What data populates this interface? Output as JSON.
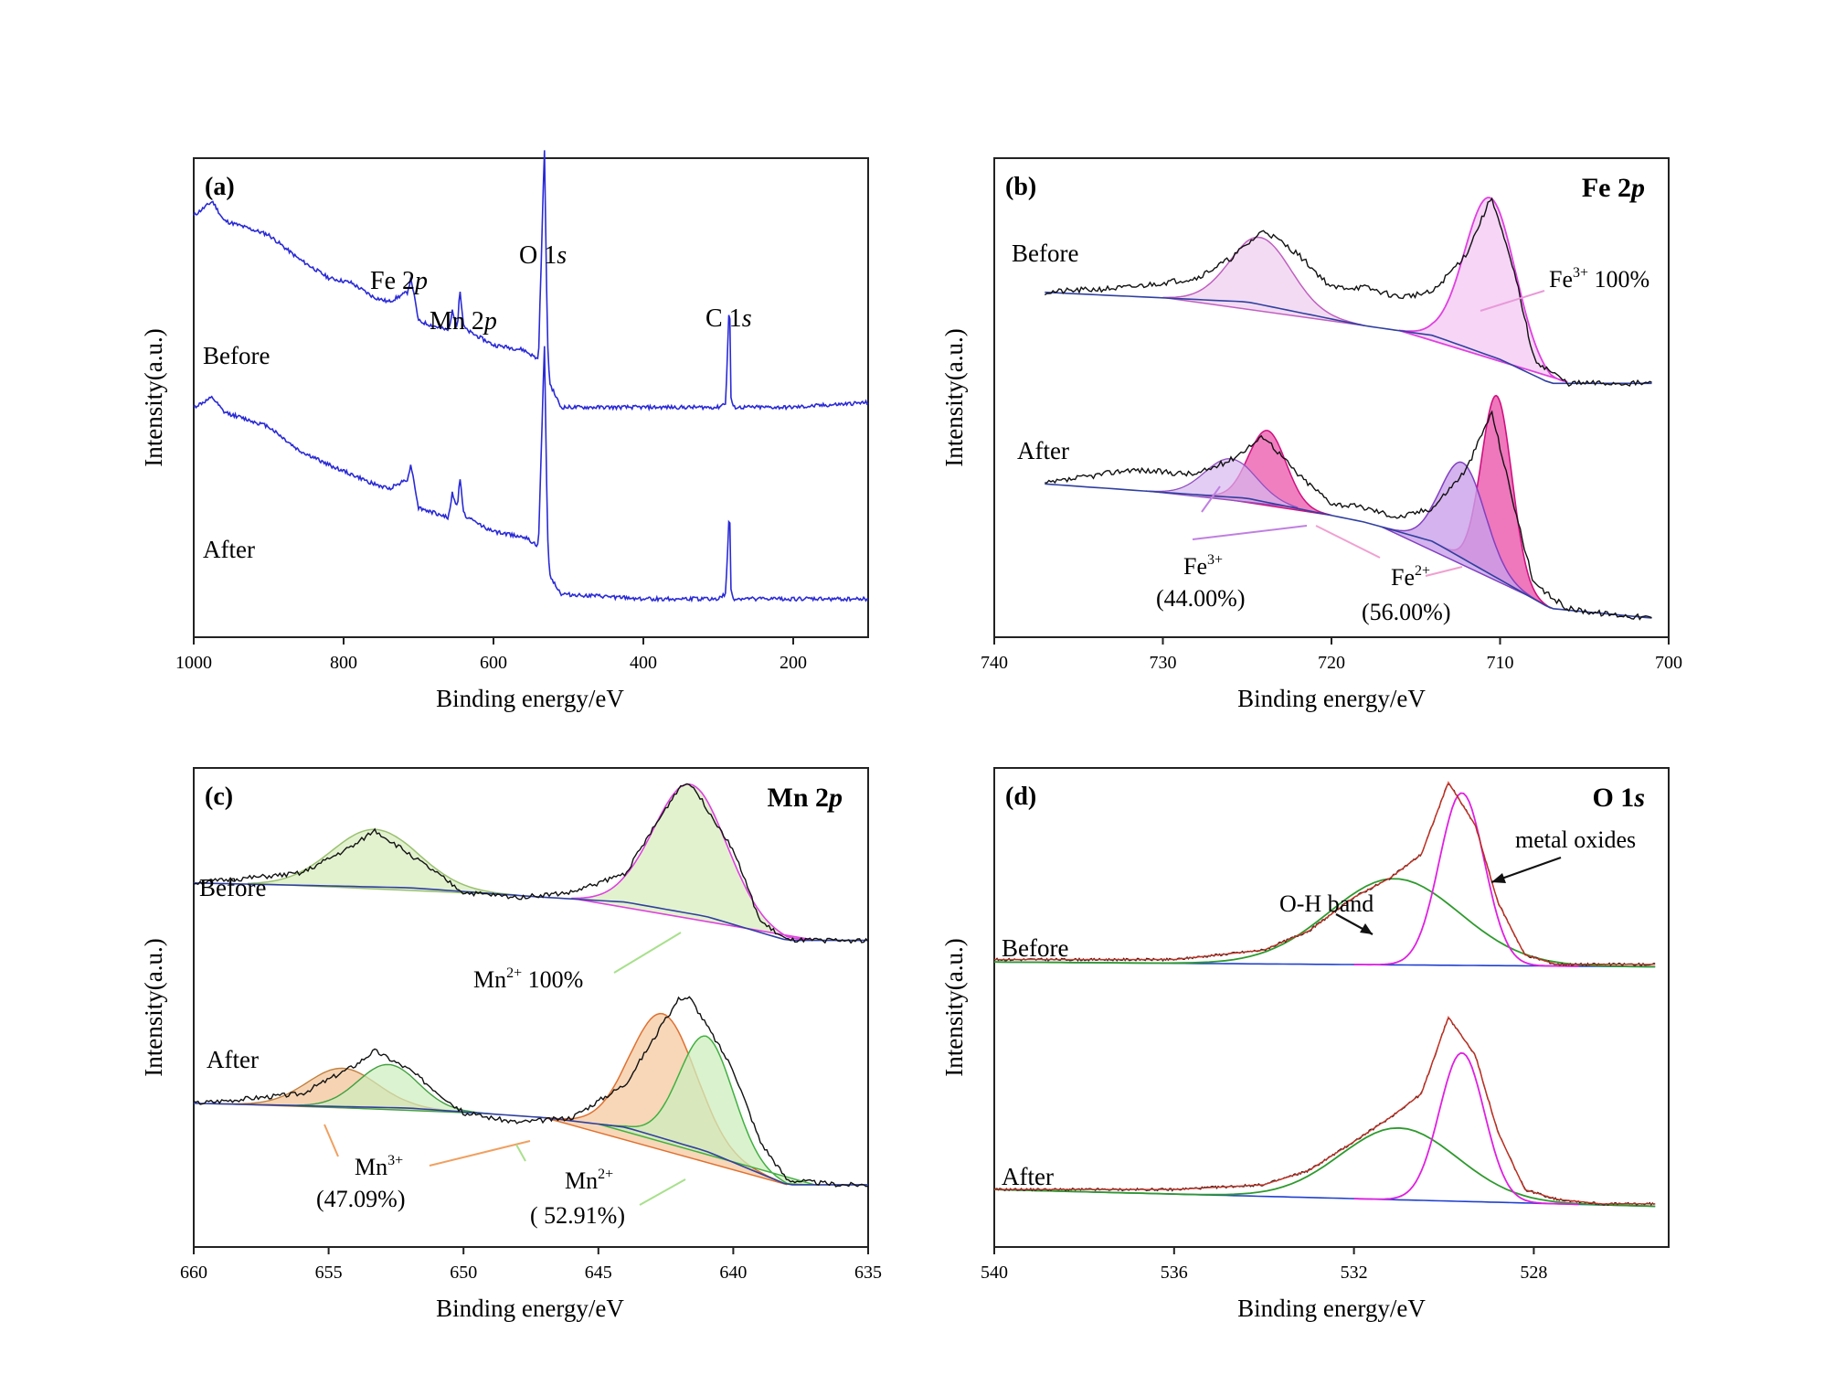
{
  "chart_data": [
    {
      "panel": "(a)",
      "type": "line",
      "element": "",
      "xlabel": "Binding energy/eV",
      "ylabel": "Intensity(a.u.)",
      "xlim": [
        1000,
        100
      ],
      "xticks": [
        1000,
        800,
        600,
        400,
        200
      ],
      "series": [
        {
          "name": "Before",
          "color": "#2a2ad6",
          "x": [
            1000,
            975,
            960,
            900,
            860,
            820,
            790,
            760,
            740,
            715,
            710,
            700,
            660,
            655,
            648,
            645,
            640,
            635,
            600,
            560,
            540,
            532,
            528,
            525,
            510,
            400,
            300,
            290,
            285,
            283,
            280,
            270,
            200,
            100
          ],
          "y": [
            0.88,
            0.91,
            0.87,
            0.84,
            0.79,
            0.75,
            0.74,
            0.71,
            0.7,
            0.72,
            0.75,
            0.66,
            0.64,
            0.68,
            0.65,
            0.73,
            0.65,
            0.64,
            0.61,
            0.6,
            0.58,
            1.02,
            0.62,
            0.53,
            0.48,
            0.48,
            0.48,
            0.49,
            0.72,
            0.5,
            0.48,
            0.48,
            0.48,
            0.49
          ]
        },
        {
          "name": "After",
          "color": "#2a2ad6",
          "x": [
            1000,
            975,
            960,
            900,
            860,
            820,
            790,
            760,
            740,
            715,
            710,
            700,
            660,
            655,
            648,
            645,
            640,
            635,
            600,
            560,
            540,
            532,
            528,
            525,
            510,
            400,
            300,
            290,
            285,
            283,
            280,
            270,
            200,
            100
          ],
          "y": [
            0.48,
            0.5,
            0.47,
            0.44,
            0.39,
            0.36,
            0.34,
            0.32,
            0.31,
            0.33,
            0.36,
            0.27,
            0.25,
            0.3,
            0.27,
            0.34,
            0.26,
            0.25,
            0.22,
            0.21,
            0.19,
            0.61,
            0.22,
            0.13,
            0.09,
            0.08,
            0.08,
            0.09,
            0.28,
            0.1,
            0.08,
            0.08,
            0.08,
            0.08
          ]
        }
      ],
      "annotations": [
        "Fe 2p",
        "Mn 2p",
        "O 1s",
        "C 1s"
      ],
      "row_labels": [
        "Before",
        "After"
      ]
    },
    {
      "panel": "(b)",
      "type": "line",
      "element": "Fe 2p",
      "xlabel": "Binding energy/eV",
      "ylabel": "Intensity(a.u.)",
      "xlim": [
        740,
        700
      ],
      "xticks": [
        740,
        730,
        720,
        710,
        700
      ],
      "series": [
        {
          "name": "Before",
          "x": [
            737,
            732,
            728,
            726,
            724,
            722,
            720,
            718,
            716,
            714,
            712,
            710.5,
            709,
            708,
            706,
            704,
            701
          ],
          "y": [
            0.72,
            0.73,
            0.75,
            0.79,
            0.85,
            0.8,
            0.73,
            0.73,
            0.71,
            0.72,
            0.8,
            0.92,
            0.74,
            0.58,
            0.53,
            0.53,
            0.53
          ]
        },
        {
          "name": "After",
          "x": [
            737,
            732,
            728,
            726,
            724,
            722,
            720,
            718,
            716,
            714,
            712,
            710.5,
            709,
            708,
            706,
            704,
            701
          ],
          "y": [
            0.32,
            0.35,
            0.34,
            0.37,
            0.42,
            0.34,
            0.28,
            0.27,
            0.25,
            0.27,
            0.35,
            0.47,
            0.25,
            0.11,
            0.06,
            0.05,
            0.04
          ]
        }
      ],
      "components": [
        {
          "name": "Fe3+",
          "row": "Before",
          "percent": 100
        },
        {
          "name": "Fe3+",
          "row": "After",
          "percent": 44.0
        },
        {
          "name": "Fe2+",
          "row": "After",
          "percent": 56.0
        }
      ],
      "annotations": [
        "Fe3+ 100%",
        "Fe3+ (44.00%)",
        "Fe2+ (56.00%)"
      ],
      "row_labels": [
        "Before",
        "After"
      ]
    },
    {
      "panel": "(c)",
      "type": "line",
      "element": "Mn 2p",
      "xlabel": "Binding energy/eV",
      "ylabel": "Intensity(a.u.)",
      "xlim": [
        660,
        635
      ],
      "xticks": [
        660,
        655,
        650,
        645,
        640,
        635
      ],
      "series": [
        {
          "name": "Before",
          "x": [
            660,
            656,
            654,
            653.3,
            652,
            650,
            648,
            646,
            644,
            642,
            641.6,
            640,
            639,
            638,
            636,
            635
          ],
          "y": [
            0.76,
            0.78,
            0.84,
            0.87,
            0.82,
            0.74,
            0.73,
            0.74,
            0.78,
            0.96,
            0.97,
            0.83,
            0.68,
            0.64,
            0.64,
            0.64
          ]
        },
        {
          "name": "After",
          "x": [
            660,
            656,
            654,
            653.3,
            652,
            650,
            648,
            646,
            644,
            642,
            641.6,
            640,
            639,
            638,
            636,
            635
          ],
          "y": [
            0.3,
            0.32,
            0.38,
            0.41,
            0.37,
            0.28,
            0.26,
            0.27,
            0.34,
            0.52,
            0.52,
            0.37,
            0.22,
            0.14,
            0.13,
            0.13
          ]
        }
      ],
      "components": [
        {
          "name": "Mn2+",
          "row": "Before",
          "percent": 100
        },
        {
          "name": "Mn3+",
          "row": "After",
          "percent": 47.09
        },
        {
          "name": "Mn2+",
          "row": "After",
          "percent": 52.91
        }
      ],
      "annotations": [
        "Mn2+ 100%",
        "Mn3+ (47.09%)",
        "Mn2+ ( 52.91%)"
      ],
      "row_labels": [
        "Before",
        "After"
      ]
    },
    {
      "panel": "(d)",
      "type": "line",
      "element": "O 1s",
      "xlabel": "Binding energy/eV",
      "ylabel": "Intensity(a.u.)",
      "xlim": [
        540,
        525
      ],
      "xticks": [
        540,
        536,
        532,
        528
      ],
      "series": [
        {
          "name": "Before",
          "x": [
            540,
            536,
            534,
            533,
            532,
            531.2,
            530.5,
            529.9,
            529.3,
            528.8,
            528.2,
            527.5,
            526.5,
            525.3
          ],
          "y": [
            0.6,
            0.6,
            0.62,
            0.66,
            0.73,
            0.77,
            0.82,
            0.97,
            0.88,
            0.72,
            0.61,
            0.59,
            0.59,
            0.59
          ]
        },
        {
          "name": "After",
          "x": [
            540,
            536,
            534,
            533,
            532,
            531.2,
            530.5,
            529.9,
            529.3,
            528.8,
            528.2,
            527.5,
            526.5,
            525.3
          ],
          "y": [
            0.12,
            0.12,
            0.13,
            0.16,
            0.22,
            0.27,
            0.32,
            0.48,
            0.4,
            0.24,
            0.12,
            0.1,
            0.09,
            0.09
          ]
        }
      ],
      "components": [
        {
          "name": "O-H band",
          "center": 531.2
        },
        {
          "name": "metal oxides",
          "center": 529.6
        }
      ],
      "annotations": [
        "O-H band",
        "metal oxides"
      ],
      "row_labels": [
        "Before",
        "After"
      ]
    }
  ]
}
